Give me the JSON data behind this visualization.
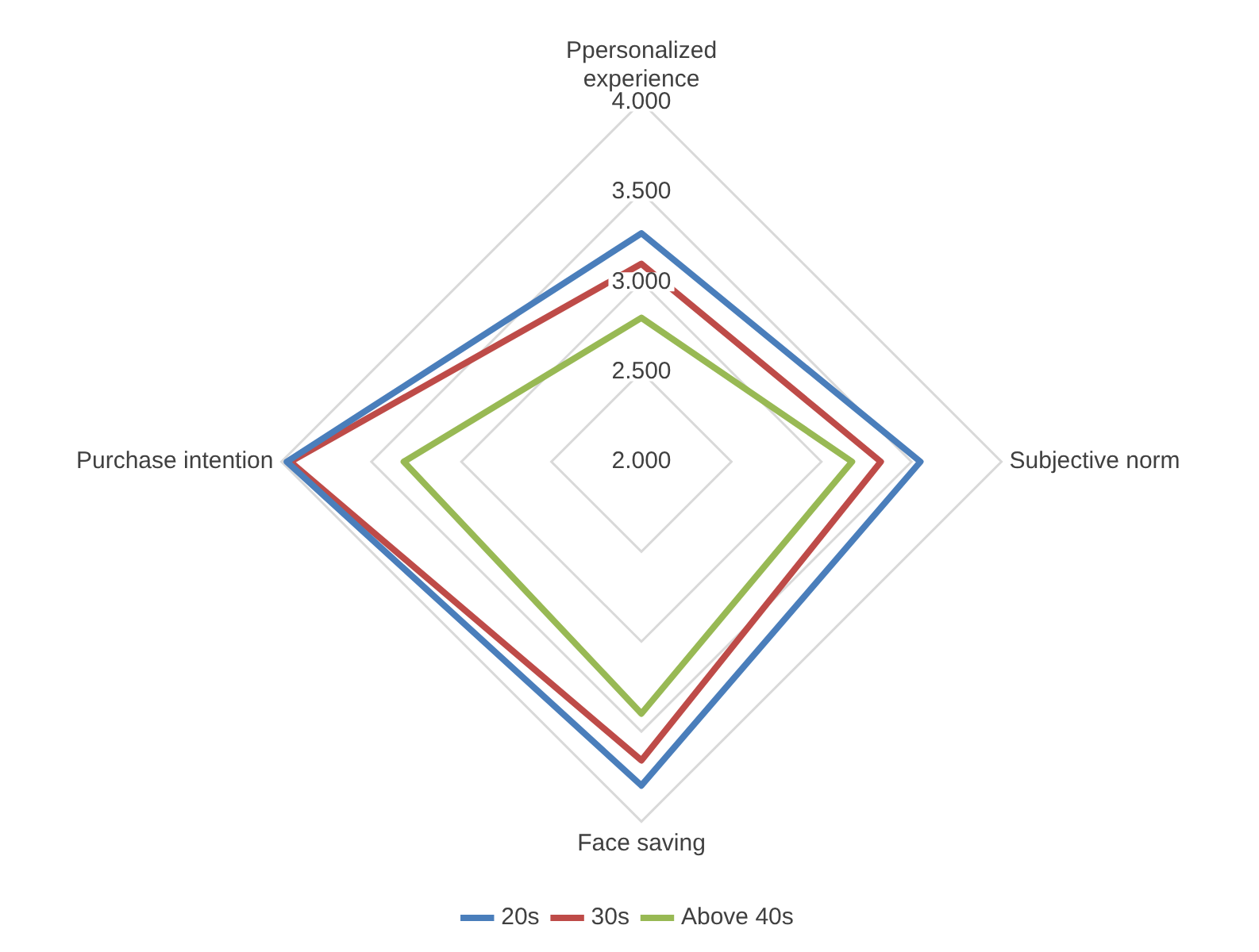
{
  "chart_data": {
    "type": "radar",
    "categories": [
      "Ppersonalized experience",
      "Subjective norm",
      "Face saving",
      "Purchase intention"
    ],
    "series": [
      {
        "name": "20s",
        "color": "#4a7ebb",
        "values": [
          3.27,
          3.55,
          3.8,
          3.97
        ]
      },
      {
        "name": "30s",
        "color": "#be4b48",
        "values": [
          3.1,
          3.33,
          3.66,
          3.95
        ]
      },
      {
        "name": "Above 40s",
        "color": "#98b954",
        "values": [
          2.8,
          3.17,
          3.4,
          3.32
        ]
      }
    ],
    "ylim": [
      2,
      4
    ],
    "yticks": [
      {
        "value": 2,
        "label": "2.000"
      },
      {
        "value": 2.5,
        "label": "2.500"
      },
      {
        "value": 3,
        "label": "3.000"
      },
      {
        "value": 3.5,
        "label": "3.500"
      },
      {
        "value": 4,
        "label": "4.000"
      }
    ],
    "grid": true,
    "legend": "bottom",
    "marker": "none",
    "line_style": "solid"
  }
}
